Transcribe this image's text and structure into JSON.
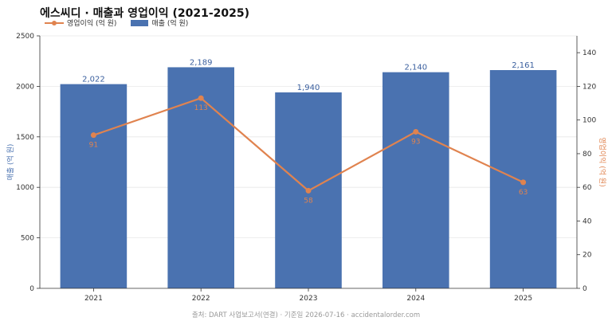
{
  "chart_data": {
    "type": "bar",
    "title": "에스씨디 · 매출과 영업이익 (2021-2025)",
    "categories": [
      "2021",
      "2022",
      "2023",
      "2024",
      "2025"
    ],
    "series": [
      {
        "name": "매출 (억 원)",
        "kind": "bar",
        "axis": "left",
        "values": [
          2022,
          2189,
          1940,
          2140,
          2161
        ],
        "labels": [
          "2,022",
          "2,189",
          "1,940",
          "2,140",
          "2,161"
        ],
        "color": "#4a72b0"
      },
      {
        "name": "영업이익 (억 원)",
        "kind": "line",
        "axis": "right",
        "values": [
          91,
          113,
          58,
          93,
          63
        ],
        "labels": [
          "91",
          "113",
          "58",
          "93",
          "63"
        ],
        "color": "#e0834f"
      }
    ],
    "y_left": {
      "label": "매출 (억 원)",
      "range": [
        0,
        2500
      ],
      "ticks": [
        0,
        500,
        1000,
        1500,
        2000,
        2500
      ]
    },
    "y_right": {
      "label": "영업이익 (억 원)",
      "range": [
        0,
        150
      ],
      "ticks": [
        0,
        20,
        40,
        60,
        80,
        100,
        120,
        140
      ]
    },
    "grid": true,
    "legend_position": "top-left"
  },
  "source": "출처: DART 사업보고서(연결) · 기준일 2026-07-16 · accidentalorder.com"
}
